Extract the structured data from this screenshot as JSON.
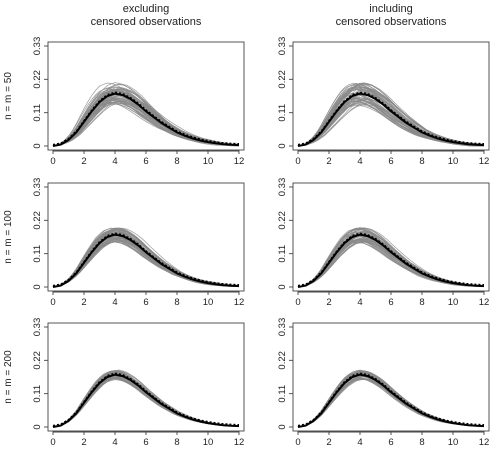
{
  "column_titles": [
    [
      "excluding",
      "censored observations"
    ],
    [
      "including",
      "censored observations"
    ]
  ],
  "row_labels": [
    "n = m = 50",
    "n = m = 100",
    "n = m = 200"
  ],
  "chart_data": {
    "type": "line",
    "layout": "3x2 grid",
    "xlim": [
      0,
      12
    ],
    "ylim": [
      0,
      0.33
    ],
    "x_ticks": [
      0,
      2,
      4,
      6,
      8,
      10,
      12
    ],
    "y_ticks": [
      0,
      0.11,
      0.22,
      0.33
    ],
    "x_tick_labels": [
      "0",
      "2",
      "4",
      "6",
      "8",
      "10",
      "12"
    ],
    "y_tick_labels": [
      "0",
      "0.11",
      "0.22",
      "0.33"
    ],
    "grid": false,
    "legend": "none",
    "colors": {
      "simulations": "#8a8a8a",
      "truth": "#000000"
    },
    "true_density": {
      "x": [
        0,
        0.5,
        1,
        1.5,
        2,
        2.5,
        3,
        3.5,
        4,
        4.5,
        5,
        5.5,
        6,
        6.5,
        7,
        7.5,
        8,
        8.5,
        9,
        9.5,
        10,
        10.5,
        11,
        11.5,
        12
      ],
      "y": [
        0,
        0.005,
        0.02,
        0.045,
        0.08,
        0.115,
        0.145,
        0.165,
        0.173,
        0.168,
        0.155,
        0.137,
        0.115,
        0.095,
        0.076,
        0.06,
        0.045,
        0.034,
        0.025,
        0.018,
        0.013,
        0.009,
        0.006,
        0.004,
        0.003
      ]
    },
    "simulation_spread_by_row": [
      0.22,
      0.14,
      0.09
    ],
    "simulations_per_panel": 60,
    "panels": [
      {
        "row": 0,
        "col": 0
      },
      {
        "row": 0,
        "col": 1
      },
      {
        "row": 1,
        "col": 0
      },
      {
        "row": 1,
        "col": 1
      },
      {
        "row": 2,
        "col": 0
      },
      {
        "row": 2,
        "col": 1
      }
    ]
  }
}
